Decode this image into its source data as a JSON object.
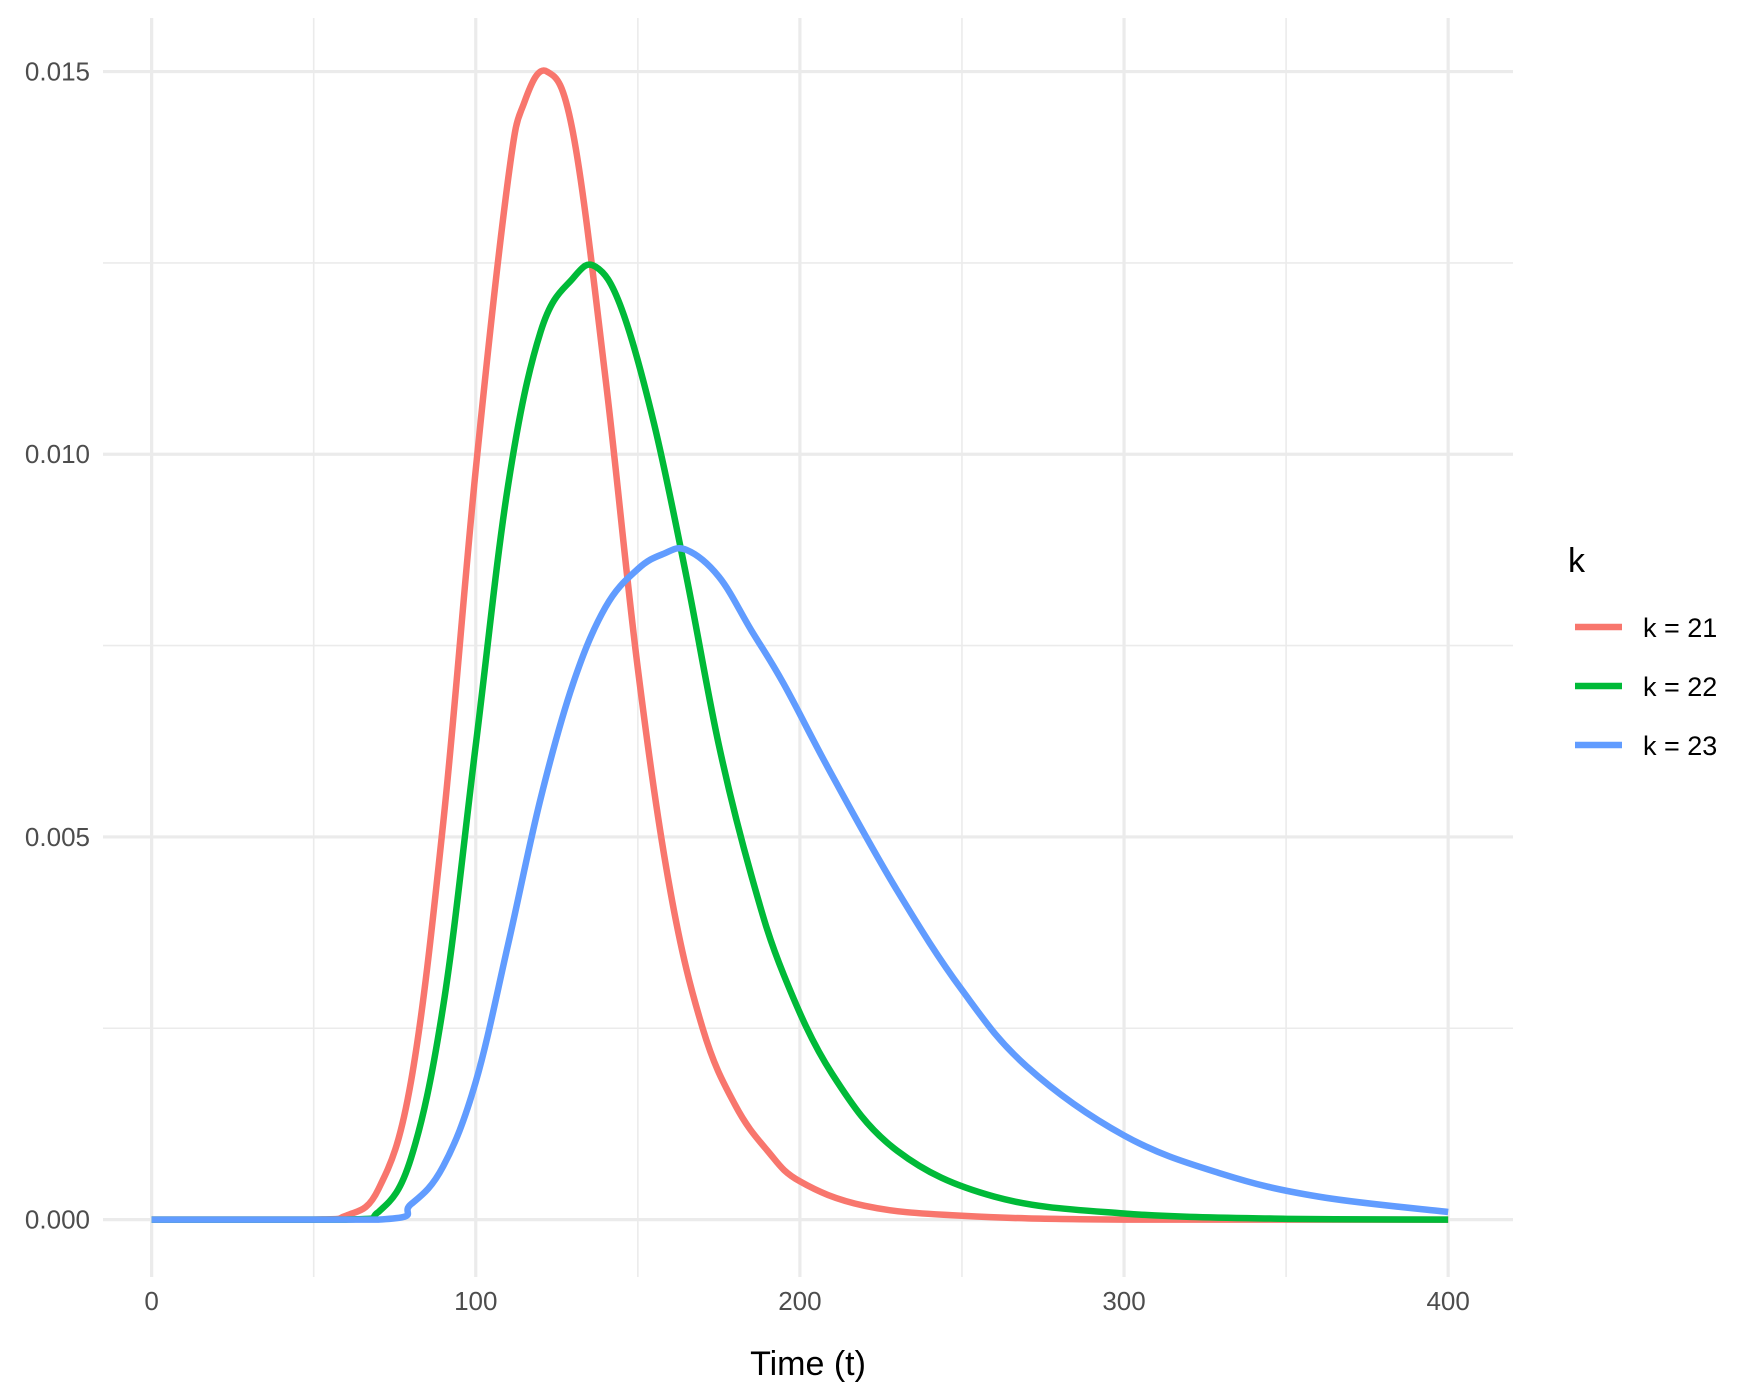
{
  "chart_data": {
    "type": "line",
    "title": "",
    "xlabel": "Time (t)",
    "ylabel": "",
    "xlim": [
      -15,
      420
    ],
    "ylim": [
      -0.00075,
      0.0157
    ],
    "x_ticks": [
      0,
      100,
      200,
      300,
      400
    ],
    "x_tick_labels": [
      "0",
      "100",
      "200",
      "300",
      "400"
    ],
    "x_minor_ticks": [
      50,
      150,
      250,
      350
    ],
    "y_ticks": [
      0.0,
      0.005,
      0.01,
      0.015
    ],
    "y_tick_labels": [
      "0.000",
      "0.005",
      "0.010",
      "0.015"
    ],
    "y_minor_ticks": [
      0.0025,
      0.0075,
      0.0125
    ],
    "grid": true,
    "legend": {
      "title": "k",
      "position": "right"
    },
    "series": [
      {
        "name": "k = 21",
        "color": "#F8766D",
        "points": [
          [
            0,
            0
          ],
          [
            50,
            0
          ],
          [
            60,
            5e-05
          ],
          [
            70,
            0.0004
          ],
          [
            80,
            0.0018
          ],
          [
            90,
            0.0052
          ],
          [
            100,
            0.0098
          ],
          [
            110,
            0.0136
          ],
          [
            115,
            0.0146
          ],
          [
            122,
            0.015
          ],
          [
            130,
            0.0142
          ],
          [
            140,
            0.011
          ],
          [
            150,
            0.0072
          ],
          [
            160,
            0.0043
          ],
          [
            170,
            0.0025
          ],
          [
            180,
            0.0015
          ],
          [
            190,
            0.0009
          ],
          [
            200,
            0.0005
          ],
          [
            220,
            0.00018
          ],
          [
            250,
            5e-05
          ],
          [
            300,
            0.0
          ],
          [
            400,
            0.0
          ]
        ]
      },
      {
        "name": "k = 22",
        "color": "#00BA38",
        "points": [
          [
            0,
            0
          ],
          [
            60,
            0
          ],
          [
            70,
            0.0001
          ],
          [
            80,
            0.0008
          ],
          [
            90,
            0.0028
          ],
          [
            100,
            0.0062
          ],
          [
            110,
            0.0096
          ],
          [
            120,
            0.0116
          ],
          [
            130,
            0.0123
          ],
          [
            137,
            0.01245
          ],
          [
            145,
            0.0119
          ],
          [
            155,
            0.0104
          ],
          [
            165,
            0.0084
          ],
          [
            175,
            0.0062
          ],
          [
            185,
            0.0045
          ],
          [
            195,
            0.0032
          ],
          [
            210,
            0.0019
          ],
          [
            230,
            0.0009
          ],
          [
            260,
            0.0003
          ],
          [
            300,
            8e-05
          ],
          [
            350,
            1e-05
          ],
          [
            400,
            0.0
          ]
        ]
      },
      {
        "name": "k = 23",
        "color": "#619CFF",
        "points": [
          [
            0,
            0
          ],
          [
            70,
            0
          ],
          [
            80,
            0.0002
          ],
          [
            90,
            0.0007
          ],
          [
            100,
            0.0018
          ],
          [
            110,
            0.0036
          ],
          [
            120,
            0.0055
          ],
          [
            130,
            0.007
          ],
          [
            140,
            0.008
          ],
          [
            150,
            0.0085
          ],
          [
            158,
            0.0087
          ],
          [
            165,
            0.00875
          ],
          [
            175,
            0.0084
          ],
          [
            185,
            0.0077
          ],
          [
            195,
            0.007
          ],
          [
            210,
            0.0058
          ],
          [
            230,
            0.0043
          ],
          [
            250,
            0.003
          ],
          [
            270,
            0.002
          ],
          [
            300,
            0.0011
          ],
          [
            330,
            0.0006
          ],
          [
            360,
            0.0003
          ],
          [
            400,
            0.0001
          ]
        ]
      }
    ]
  }
}
